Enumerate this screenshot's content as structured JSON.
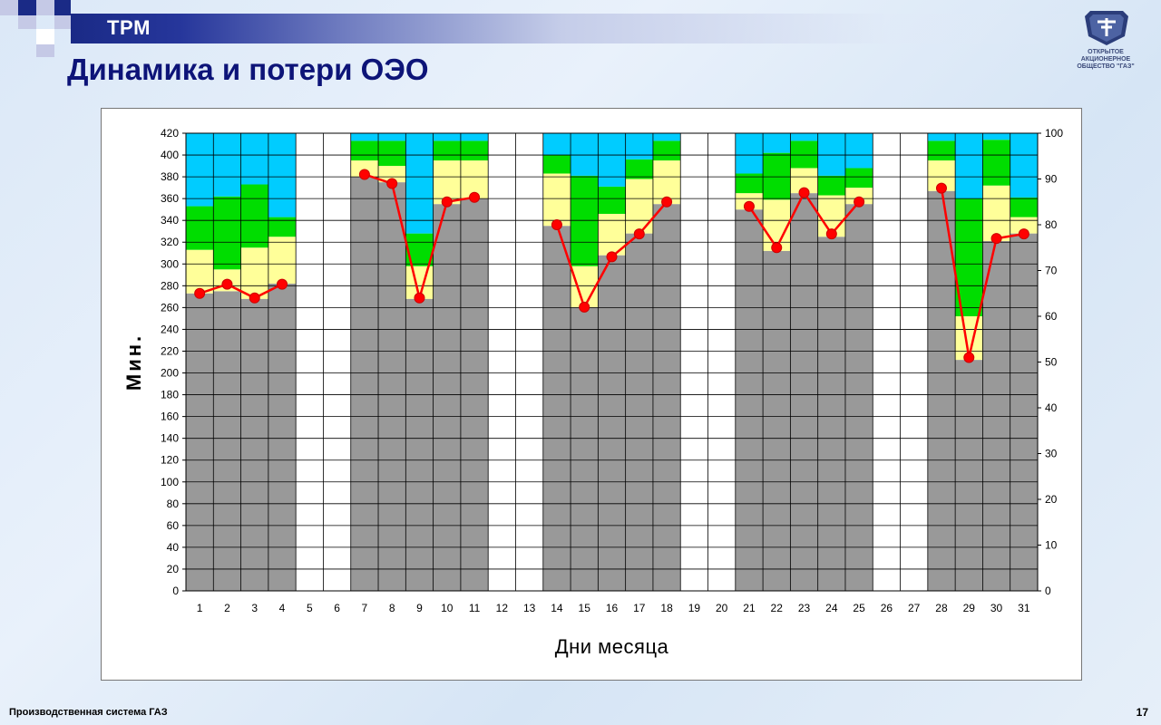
{
  "header": {
    "banner_label": "TPM",
    "title": "Динамика и потери  ОЭО"
  },
  "logo": {
    "icon": "gaz-deer-emblem",
    "company_text_line1": "ОТКРЫТОЕ",
    "company_text_line2": "АКЦИОНЕРНОЕ",
    "company_text_line3": "ОБЩЕСТВО \"ГАЗ\""
  },
  "footer": {
    "left_text": "Производственная  система ГАЗ",
    "page_number": "17"
  },
  "colors": {
    "gray": "#999999",
    "yellow": "#ffff99",
    "green": "#00dd00",
    "cyan": "#00ccff",
    "line": "#ff0000"
  },
  "chart_data": {
    "type": "bar",
    "stacked": true,
    "title": "",
    "xlabel": "Дни месяца",
    "ylabel": "Мин.",
    "ylim": [
      0,
      420
    ],
    "y_ticks": [
      0,
      20,
      40,
      60,
      80,
      100,
      120,
      140,
      160,
      180,
      200,
      220,
      240,
      260,
      280,
      300,
      320,
      340,
      360,
      380,
      400,
      420
    ],
    "y2lim": [
      0,
      100
    ],
    "y2_ticks": [
      0,
      10,
      20,
      30,
      40,
      50,
      60,
      70,
      80,
      90,
      100
    ],
    "grid": true,
    "categories": [
      "1",
      "2",
      "3",
      "4",
      "5",
      "6",
      "7",
      "8",
      "9",
      "10",
      "11",
      "12",
      "13",
      "14",
      "15",
      "16",
      "17",
      "18",
      "19",
      "20",
      "21",
      "22",
      "23",
      "24",
      "25",
      "26",
      "27",
      "28",
      "29",
      "30",
      "31"
    ],
    "series": [
      {
        "values": [
          273,
          275,
          268,
          282,
          0,
          0,
          380,
          375,
          268,
          355,
          360,
          0,
          0,
          335,
          260,
          308,
          328,
          355,
          0,
          0,
          350,
          312,
          365,
          325,
          355,
          0,
          0,
          367,
          212,
          321,
          328
        ]
      },
      {
        "values": [
          40,
          20,
          47,
          43,
          0,
          0,
          15,
          15,
          30,
          40,
          35,
          0,
          0,
          48,
          38,
          38,
          50,
          40,
          0,
          0,
          15,
          47,
          23,
          38,
          15,
          0,
          0,
          28,
          40,
          51,
          15
        ]
      },
      {
        "values": [
          40,
          67,
          58,
          18,
          0,
          0,
          18,
          23,
          30,
          18,
          18,
          0,
          0,
          17,
          83,
          25,
          18,
          18,
          0,
          0,
          18,
          43,
          25,
          18,
          18,
          0,
          0,
          18,
          108,
          42,
          18
        ]
      },
      {
        "values": [
          67,
          58,
          47,
          77,
          0,
          0,
          7,
          7,
          92,
          7,
          7,
          0,
          0,
          20,
          39,
          49,
          24,
          7,
          0,
          0,
          37,
          18,
          7,
          39,
          32,
          0,
          0,
          7,
          60,
          6,
          59
        ]
      }
    ],
    "line_series": {
      "axis": "right",
      "values": [
        65,
        67,
        64,
        67,
        null,
        null,
        91,
        89,
        64,
        85,
        86,
        null,
        null,
        80,
        62,
        73,
        78,
        85,
        null,
        null,
        84,
        75,
        87,
        78,
        85,
        null,
        null,
        88,
        51,
        77,
        78
      ]
    }
  }
}
